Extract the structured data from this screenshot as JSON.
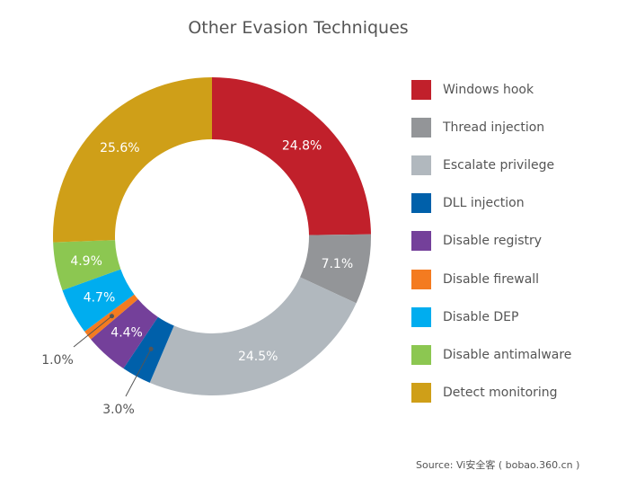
{
  "chart_data": {
    "type": "pie",
    "donut": true,
    "title": "Other Evasion Techniques",
    "categories": [
      "Windows hook",
      "Thread injection",
      "Escalate privilege",
      "DLL injection",
      "Disable registry",
      "Disable firewall",
      "Disable DEP",
      "Disable antimalware",
      "Detect monitoring"
    ],
    "values": [
      24.8,
      7.1,
      24.5,
      3.0,
      4.4,
      1.0,
      4.7,
      4.9,
      25.6
    ],
    "labels": [
      "24.8%",
      "7.1%",
      "24.5%",
      "3.0%",
      "4.4%",
      "1.0%",
      "4.7%",
      "4.9%",
      "25.6%"
    ],
    "colors": [
      "#c1202b",
      "#939598",
      "#b1b8be",
      "#0060aa",
      "#74409a",
      "#f47b20",
      "#00adef",
      "#8cc751",
      "#cf9f18"
    ],
    "legend_position": "right",
    "source": "Source: Vi安全客 ( bobao.360.cn )"
  }
}
